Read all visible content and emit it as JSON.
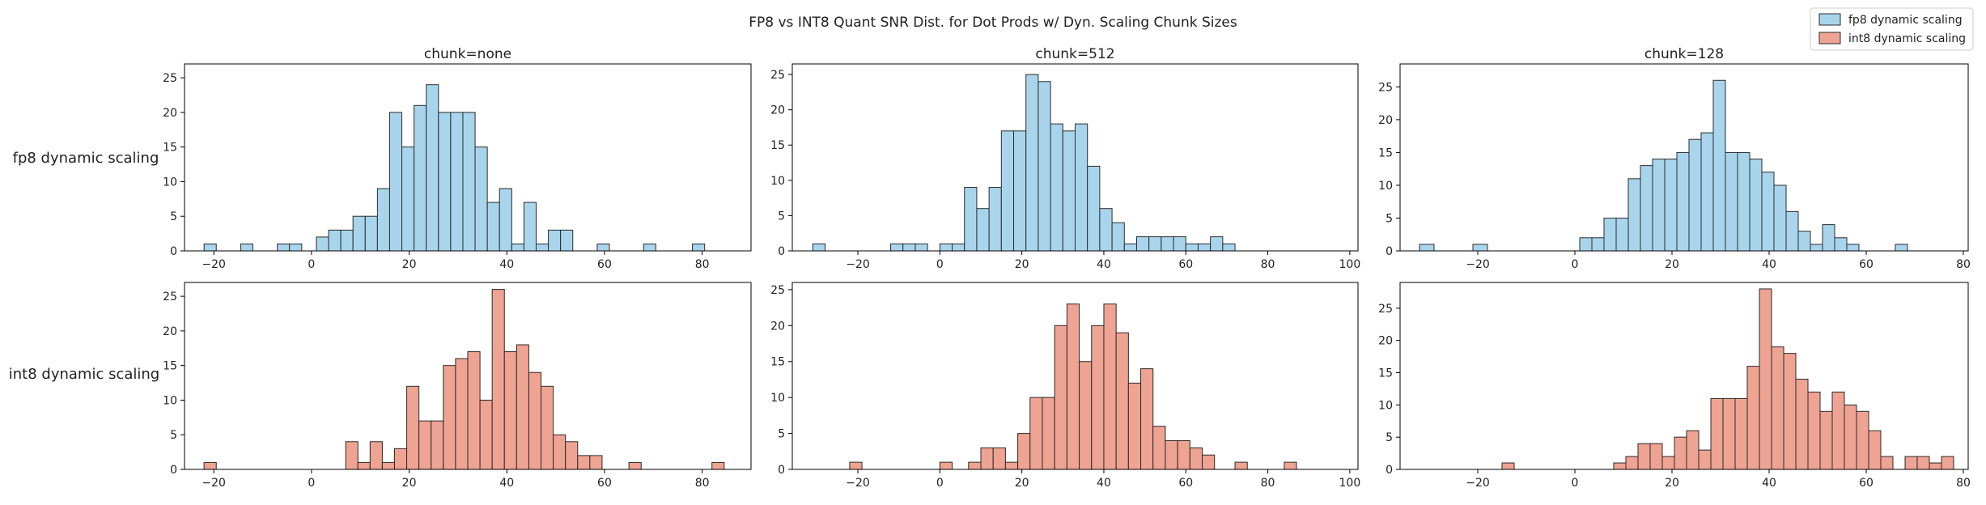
{
  "figure": {
    "suptitle": "FP8 vs INT8 Quant SNR Dist. for Dot Prods w/ Dyn. Scaling Chunk Sizes",
    "col_titles": [
      "chunk=none",
      "chunk=512",
      "chunk=128"
    ],
    "row_labels": [
      "fp8 dynamic scaling",
      "int8 dynamic scaling"
    ],
    "legend": [
      {
        "label": "fp8 dynamic scaling",
        "color": "#a9d5ec"
      },
      {
        "label": "int8 dynamic scaling",
        "color": "#eea393"
      }
    ],
    "legend_placement": "top-right",
    "edge_color": "#2b2b2b"
  },
  "chart_data": [
    {
      "type": "bar",
      "subtype": "histogram",
      "title": "chunk=none",
      "ylabel": "fp8 dynamic scaling",
      "series": "fp8 dynamic scaling",
      "xlim": [
        -26,
        90
      ],
      "ylim": [
        0,
        27
      ],
      "xticks": [
        -20,
        0,
        20,
        40,
        60,
        80
      ],
      "yticks": [
        0,
        5,
        10,
        15,
        20,
        25
      ],
      "bins": [
        [
          -22,
          -19.5,
          1
        ],
        [
          -14.5,
          -12,
          1
        ],
        [
          -7,
          -4.5,
          1
        ],
        [
          -4.5,
          -2,
          1
        ],
        [
          1,
          3.5,
          2
        ],
        [
          3.5,
          6,
          3
        ],
        [
          6,
          8.5,
          3
        ],
        [
          8.5,
          11,
          5
        ],
        [
          11,
          13.5,
          5
        ],
        [
          13.5,
          16,
          9
        ],
        [
          16,
          18.5,
          20
        ],
        [
          18.5,
          21,
          15
        ],
        [
          21,
          23.5,
          21
        ],
        [
          23.5,
          26,
          24
        ],
        [
          26,
          28.5,
          20
        ],
        [
          28.5,
          31,
          20
        ],
        [
          31,
          33.5,
          20
        ],
        [
          33.5,
          36,
          15
        ],
        [
          36,
          38.5,
          7
        ],
        [
          38.5,
          41,
          9
        ],
        [
          41,
          43.5,
          1
        ],
        [
          43.5,
          46,
          7
        ],
        [
          46,
          48.5,
          1
        ],
        [
          48.5,
          51,
          3
        ],
        [
          51,
          53.5,
          3
        ],
        [
          58.5,
          61,
          1
        ],
        [
          68,
          70.5,
          1
        ],
        [
          78,
          80.5,
          1
        ]
      ]
    },
    {
      "type": "bar",
      "subtype": "histogram",
      "title": "chunk=512",
      "series": "fp8 dynamic scaling",
      "xlim": [
        -36,
        102
      ],
      "ylim": [
        0,
        26.5
      ],
      "xticks": [
        -20,
        0,
        20,
        40,
        60,
        80,
        100
      ],
      "yticks": [
        0,
        5,
        10,
        15,
        20,
        25
      ],
      "bins": [
        [
          -31,
          -28,
          1
        ],
        [
          -12,
          -9,
          1
        ],
        [
          -9,
          -6,
          1
        ],
        [
          -6,
          -3,
          1
        ],
        [
          0,
          3,
          1
        ],
        [
          3,
          6,
          1
        ],
        [
          6,
          9,
          9
        ],
        [
          9,
          12,
          6
        ],
        [
          12,
          15,
          9
        ],
        [
          15,
          18,
          17
        ],
        [
          18,
          21,
          17
        ],
        [
          21,
          24,
          25
        ],
        [
          24,
          27,
          24
        ],
        [
          27,
          30,
          18
        ],
        [
          30,
          33,
          17
        ],
        [
          33,
          36,
          18
        ],
        [
          36,
          39,
          12
        ],
        [
          39,
          42,
          6
        ],
        [
          42,
          45,
          4
        ],
        [
          45,
          48,
          1
        ],
        [
          48,
          51,
          2
        ],
        [
          51,
          54,
          2
        ],
        [
          54,
          57,
          2
        ],
        [
          57,
          60,
          2
        ],
        [
          60,
          63,
          1
        ],
        [
          63,
          66,
          1
        ],
        [
          66,
          69,
          2
        ],
        [
          69,
          72,
          1
        ]
      ]
    },
    {
      "type": "bar",
      "subtype": "histogram",
      "title": "chunk=128",
      "series": "fp8 dynamic scaling",
      "xlim": [
        -36,
        81
      ],
      "ylim": [
        0,
        28.5
      ],
      "xticks": [
        -20,
        0,
        20,
        40,
        60,
        80
      ],
      "yticks": [
        0,
        5,
        10,
        15,
        20,
        25
      ],
      "bins": [
        [
          -32,
          -29,
          1
        ],
        [
          -21,
          -18,
          1
        ],
        [
          1,
          3.5,
          2
        ],
        [
          3.5,
          6,
          2
        ],
        [
          6,
          8.5,
          5
        ],
        [
          8.5,
          11,
          5
        ],
        [
          11,
          13.5,
          11
        ],
        [
          13.5,
          16,
          13
        ],
        [
          16,
          18.5,
          14
        ],
        [
          18.5,
          21,
          14
        ],
        [
          21,
          23.5,
          15
        ],
        [
          23.5,
          26,
          17
        ],
        [
          26,
          28.5,
          18
        ],
        [
          28.5,
          31,
          26
        ],
        [
          31,
          33.5,
          15
        ],
        [
          33.5,
          36,
          15
        ],
        [
          36,
          38.5,
          14
        ],
        [
          38.5,
          41,
          12
        ],
        [
          41,
          43.5,
          10
        ],
        [
          43.5,
          46,
          6
        ],
        [
          46,
          48.5,
          3
        ],
        [
          48.5,
          51,
          1
        ],
        [
          51,
          53.5,
          4
        ],
        [
          53.5,
          56,
          2
        ],
        [
          56,
          58.5,
          1
        ],
        [
          66,
          68.5,
          1
        ]
      ]
    },
    {
      "type": "bar",
      "subtype": "histogram",
      "series": "int8 dynamic scaling",
      "ylabel": "int8 dynamic scaling",
      "xlim": [
        -26,
        90
      ],
      "ylim": [
        0,
        27
      ],
      "xticks": [
        -20,
        0,
        20,
        40,
        60,
        80
      ],
      "yticks": [
        0,
        5,
        10,
        15,
        20,
        25
      ],
      "bins": [
        [
          -22,
          -19.5,
          1
        ],
        [
          7,
          9.5,
          4
        ],
        [
          9.5,
          12,
          1
        ],
        [
          12,
          14.5,
          4
        ],
        [
          14.5,
          17,
          1
        ],
        [
          17,
          19.5,
          3
        ],
        [
          19.5,
          22,
          12
        ],
        [
          22,
          24.5,
          7
        ],
        [
          24.5,
          27,
          7
        ],
        [
          27,
          29.5,
          15
        ],
        [
          29.5,
          32,
          16
        ],
        [
          32,
          34.5,
          17
        ],
        [
          34.5,
          37,
          10
        ],
        [
          37,
          39.5,
          26
        ],
        [
          39.5,
          42,
          17
        ],
        [
          42,
          44.5,
          18
        ],
        [
          44.5,
          47,
          14
        ],
        [
          47,
          49.5,
          12
        ],
        [
          49.5,
          52,
          5
        ],
        [
          52,
          54.5,
          4
        ],
        [
          54.5,
          57,
          2
        ],
        [
          57,
          59.5,
          2
        ],
        [
          65,
          67.5,
          1
        ],
        [
          82,
          84.5,
          1
        ]
      ]
    },
    {
      "type": "bar",
      "subtype": "histogram",
      "series": "int8 dynamic scaling",
      "xlim": [
        -36,
        102
      ],
      "ylim": [
        0,
        26
      ],
      "xticks": [
        -20,
        0,
        20,
        40,
        60,
        80,
        100
      ],
      "yticks": [
        0,
        5,
        10,
        15,
        20,
        25
      ],
      "bins": [
        [
          -22,
          -19,
          1
        ],
        [
          0,
          3,
          1
        ],
        [
          7,
          10,
          1
        ],
        [
          10,
          13,
          3
        ],
        [
          13,
          16,
          3
        ],
        [
          16,
          19,
          1
        ],
        [
          19,
          22,
          5
        ],
        [
          22,
          25,
          10
        ],
        [
          25,
          28,
          10
        ],
        [
          28,
          31,
          20
        ],
        [
          31,
          34,
          23
        ],
        [
          34,
          37,
          15
        ],
        [
          37,
          40,
          20
        ],
        [
          40,
          43,
          23
        ],
        [
          43,
          46,
          19
        ],
        [
          46,
          49,
          12
        ],
        [
          49,
          52,
          14
        ],
        [
          52,
          55,
          6
        ],
        [
          55,
          58,
          4
        ],
        [
          58,
          61,
          4
        ],
        [
          61,
          64,
          3
        ],
        [
          64,
          67,
          2
        ],
        [
          72,
          75,
          1
        ],
        [
          84,
          87,
          1
        ]
      ]
    },
    {
      "type": "bar",
      "subtype": "histogram",
      "series": "int8 dynamic scaling",
      "xlim": [
        -36,
        81
      ],
      "ylim": [
        0,
        29
      ],
      "xticks": [
        -20,
        0,
        20,
        40,
        60,
        80
      ],
      "yticks": [
        0,
        5,
        10,
        15,
        20,
        25
      ],
      "bins": [
        [
          -15,
          -12.5,
          1
        ],
        [
          8,
          10.5,
          1
        ],
        [
          10.5,
          13,
          2
        ],
        [
          13,
          15.5,
          4
        ],
        [
          15.5,
          18,
          4
        ],
        [
          18,
          20.5,
          2
        ],
        [
          20.5,
          23,
          5
        ],
        [
          23,
          25.5,
          6
        ],
        [
          25.5,
          28,
          3
        ],
        [
          28,
          30.5,
          11
        ],
        [
          30.5,
          33,
          11
        ],
        [
          33,
          35.5,
          11
        ],
        [
          35.5,
          38,
          16
        ],
        [
          38,
          40.5,
          28
        ],
        [
          40.5,
          43,
          19
        ],
        [
          43,
          45.5,
          18
        ],
        [
          45.5,
          48,
          14
        ],
        [
          48,
          50.5,
          12
        ],
        [
          50.5,
          53,
          9
        ],
        [
          53,
          55.5,
          12
        ],
        [
          55.5,
          58,
          10
        ],
        [
          58,
          60.5,
          9
        ],
        [
          60.5,
          63,
          6
        ],
        [
          63,
          65.5,
          2
        ],
        [
          68,
          70.5,
          2
        ],
        [
          70.5,
          73,
          2
        ],
        [
          73,
          75.5,
          1
        ],
        [
          75.5,
          78,
          2
        ]
      ]
    }
  ]
}
